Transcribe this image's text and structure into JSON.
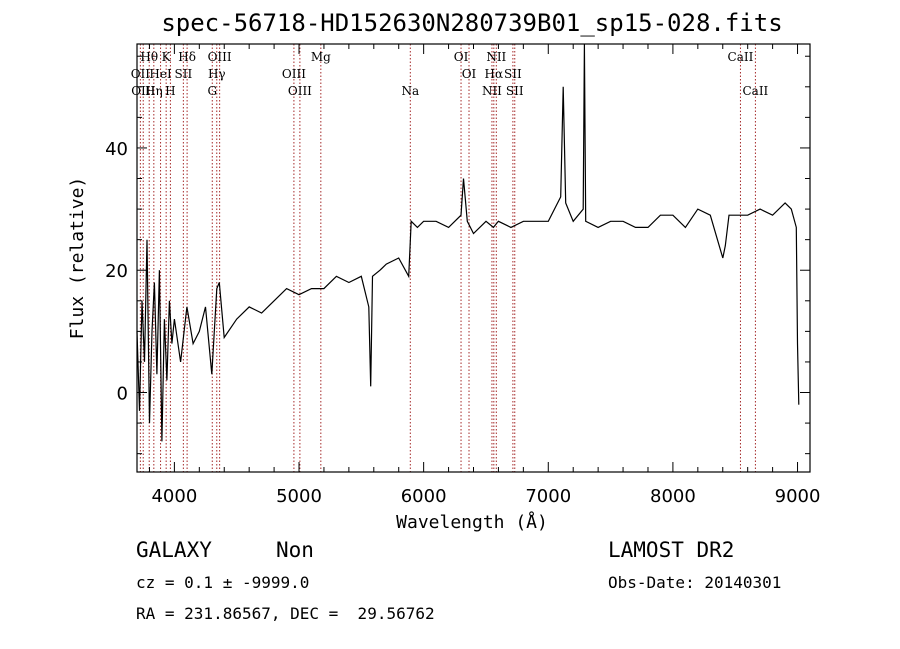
{
  "chart_data": {
    "type": "line",
    "title": "spec-56718-HD152630N280739B01_sp15-028.fits",
    "xlabel": "Wavelength (Å)",
    "ylabel": "Flux (relative)",
    "xlim": [
      3700,
      9100
    ],
    "ylim": [
      -13,
      57
    ],
    "xticks": [
      4000,
      5000,
      6000,
      7000,
      8000,
      9000
    ],
    "yticks": [
      0,
      20,
      40
    ],
    "grid": false,
    "line_color": "#000000",
    "marker_color": "#a52a2a",
    "series": [
      {
        "x": [
          3700,
          3720,
          3740,
          3760,
          3780,
          3800,
          3820,
          3840,
          3860,
          3880,
          3900,
          3920,
          3940,
          3960,
          3980,
          4000,
          4050,
          4100,
          4150,
          4200,
          4250,
          4300,
          4340,
          4360,
          4400,
          4500,
          4600,
          4700,
          4800,
          4900,
          5000,
          5100,
          5200,
          5300,
          5400,
          5500,
          5560,
          5575,
          5590,
          5650,
          5700,
          5800,
          5880,
          5900,
          5950,
          6000,
          6100,
          6200,
          6300,
          6320,
          6350,
          6400,
          6500,
          6560,
          6600,
          6700,
          6800,
          6900,
          7000,
          7100,
          7120,
          7140,
          7200,
          7280,
          7290,
          7300,
          7400,
          7500,
          7600,
          7700,
          7800,
          7900,
          8000,
          8100,
          8200,
          8300,
          8400,
          8420,
          8450,
          8500,
          8600,
          8700,
          8800,
          8900,
          8950,
          8990,
          9000,
          9010
        ],
        "y": [
          10,
          -3,
          15,
          5,
          25,
          -5,
          10,
          18,
          3,
          20,
          -8,
          12,
          2,
          15,
          8,
          12,
          5,
          14,
          8,
          10,
          14,
          3,
          17,
          18,
          9,
          12,
          14,
          13,
          15,
          17,
          16,
          17,
          17,
          19,
          18,
          19,
          14,
          1,
          19,
          20,
          21,
          22,
          19,
          28,
          27,
          28,
          28,
          27,
          29,
          35,
          28,
          26,
          28,
          27,
          28,
          27,
          28,
          28,
          28,
          32,
          50,
          31,
          28,
          30,
          57,
          28,
          27,
          28,
          28,
          27,
          27,
          29,
          29,
          27,
          30,
          29,
          22,
          24,
          29,
          29,
          29,
          30,
          29,
          31,
          30,
          27,
          8,
          -2
        ]
      }
    ],
    "annotations": [
      {
        "text": "Hθ",
        "x": 3798,
        "row": 0
      },
      {
        "text": "K",
        "x": 3934,
        "row": 0
      },
      {
        "text": "Hδ",
        "x": 4102,
        "row": 0
      },
      {
        "text": "OIII",
        "x": 4363,
        "row": 0
      },
      {
        "text": "Mg",
        "x": 5175,
        "row": 0
      },
      {
        "text": "OI",
        "x": 6300,
        "row": 0
      },
      {
        "text": "NII",
        "x": 6583,
        "row": 0
      },
      {
        "text": "CaII",
        "x": 8542,
        "row": 0
      },
      {
        "text": "OII",
        "x": 3727,
        "row": 1
      },
      {
        "text": "HeI",
        "x": 3889,
        "row": 1
      },
      {
        "text": "SII",
        "x": 4072,
        "row": 1
      },
      {
        "text": "Hγ",
        "x": 4340,
        "row": 1
      },
      {
        "text": "OIII",
        "x": 4959,
        "row": 1
      },
      {
        "text": "OI",
        "x": 6364,
        "row": 1
      },
      {
        "text": "Hα",
        "x": 6563,
        "row": 1
      },
      {
        "text": "SII",
        "x": 6716,
        "row": 1
      },
      {
        "text": "OIII",
        "x": 3750,
        "row": 2
      },
      {
        "text": "Hη",
        "x": 3835,
        "row": 2
      },
      {
        "text": "H",
        "x": 3968,
        "row": 2
      },
      {
        "text": "G",
        "x": 4304,
        "row": 2
      },
      {
        "text": "OIII",
        "x": 5007,
        "row": 2
      },
      {
        "text": "Na",
        "x": 5893,
        "row": 2
      },
      {
        "text": "NII",
        "x": 6548,
        "row": 2
      },
      {
        "text": "SII",
        "x": 6731,
        "row": 2
      },
      {
        "text": "CaII",
        "x": 8662,
        "row": 2
      }
    ]
  },
  "info": {
    "class_label": "GALAXY",
    "subclass_label": "Non",
    "cz_line": "cz = 0.1 ± -9999.0",
    "coord_line": "RA = 231.86567, DEC =  29.56762",
    "survey_label": "LAMOST DR2",
    "obs_date_line": "Obs-Date: 20140301"
  }
}
